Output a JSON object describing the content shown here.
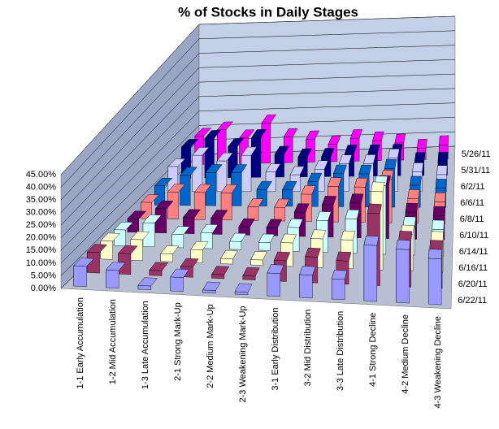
{
  "chart_data": {
    "type": "bar3d",
    "title": "% of Stocks in Daily Stages",
    "categories": [
      "1-1 Early Accumulation",
      "1-2 Mid Accumulation",
      "1-3 Late Accumulation",
      "2-1 Strong Mark-Up",
      "2-2 Medium Mark-Up",
      "2-3 Weakening Mark-Up",
      "3-1 Early Distribution",
      "3-2 Mid Distribution",
      "3-3 Late Distribution",
      "4-1 Strong Decline",
      "4-2 Medium Decline",
      "4-3 Weakening Decline"
    ],
    "series": [
      {
        "name": "5/26/11",
        "color": "#FF00FF",
        "values": [
          10,
          12,
          9,
          14,
          9,
          8,
          6,
          8,
          7,
          6,
          4,
          5
        ]
      },
      {
        "name": "5/31/11",
        "color": "#000080",
        "values": [
          11,
          14,
          11,
          14,
          8,
          7,
          7,
          8,
          8,
          8,
          5,
          5
        ]
      },
      {
        "name": "6/2/11",
        "color": "#CCCCFF",
        "values": [
          9,
          13,
          11,
          13,
          7,
          6,
          8,
          10,
          10,
          12,
          7,
          6
        ]
      },
      {
        "name": "6/6/11",
        "color": "#0066CC",
        "values": [
          7,
          11,
          12,
          12,
          6,
          6,
          9,
          12,
          12,
          14,
          8,
          7
        ]
      },
      {
        "name": "6/8/11",
        "color": "#FF8080",
        "values": [
          6,
          10,
          10,
          10,
          5,
          5,
          10,
          13,
          13,
          16,
          9,
          8
        ]
      },
      {
        "name": "6/10/11",
        "color": "#660066",
        "values": [
          5,
          9,
          6,
          6,
          3,
          3,
          9,
          12,
          13,
          20,
          10,
          9
        ]
      },
      {
        "name": "6/14/11",
        "color": "#CCFFFF",
        "values": [
          6,
          9,
          5,
          6,
          3,
          3,
          9,
          12,
          13,
          26,
          11,
          10
        ]
      },
      {
        "name": "6/16/11",
        "color": "#FFFFCC",
        "values": [
          7,
          8,
          3,
          5,
          2,
          2,
          9,
          11,
          11,
          30,
          14,
          12
        ]
      },
      {
        "name": "6/20/11",
        "color": "#993366",
        "values": [
          8,
          8,
          2,
          4,
          1.5,
          1.5,
          8,
          10,
          9,
          28,
          18,
          15
        ]
      },
      {
        "name": "6/22/11",
        "color": "#9999FF",
        "values": [
          8,
          7,
          1.5,
          5.5,
          1,
          1,
          9,
          9,
          8,
          22,
          21,
          18
        ]
      }
    ],
    "ylim": [
      0,
      45
    ],
    "yticks": [
      {
        "value": 0,
        "label": "0.00%"
      },
      {
        "value": 5,
        "label": "5.00%"
      },
      {
        "value": 10,
        "label": "10.00%"
      },
      {
        "value": 15,
        "label": "15.00%"
      },
      {
        "value": 20,
        "label": "20.00%"
      },
      {
        "value": 25,
        "label": "25.00%"
      },
      {
        "value": 30,
        "label": "30.00%"
      },
      {
        "value": 35,
        "label": "35.00%"
      },
      {
        "value": 40,
        "label": "40.00%"
      },
      {
        "value": 45,
        "label": "45.00%"
      }
    ],
    "grid": true
  }
}
